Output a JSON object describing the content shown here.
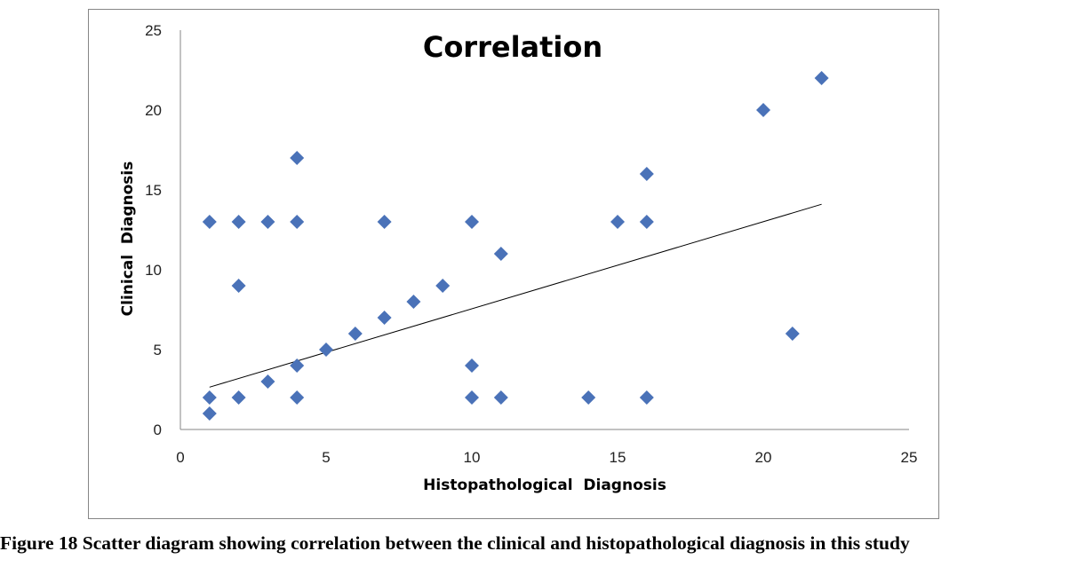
{
  "caption": "Figure 18 Scatter diagram showing correlation between the clinical and histopathological diagnosis in this study",
  "chart_data": {
    "type": "scatter",
    "title": "Correlation",
    "xlabel": "Histopathological  Diagnosis",
    "ylabel": "Clinical  Diagnosis",
    "xlim": [
      0,
      25
    ],
    "ylim": [
      0,
      25
    ],
    "xticks": [
      0,
      5,
      10,
      15,
      20,
      25
    ],
    "yticks": [
      0,
      5,
      10,
      15,
      20,
      25
    ],
    "grid": false,
    "legend": "none",
    "marker": "diamond",
    "marker_color": "#4A72B8",
    "trendline_color": "#000000",
    "series": [
      {
        "points": [
          [
            1,
            13
          ],
          [
            2,
            13
          ],
          [
            3,
            13
          ],
          [
            4,
            17
          ],
          [
            4,
            13
          ],
          [
            7,
            13
          ],
          [
            10,
            13
          ],
          [
            2,
            9
          ],
          [
            11,
            11
          ],
          [
            9,
            9
          ],
          [
            8,
            8
          ],
          [
            7,
            7
          ],
          [
            6,
            6
          ],
          [
            5,
            5
          ],
          [
            4,
            4
          ],
          [
            3,
            3
          ],
          [
            2,
            2
          ],
          [
            1,
            2
          ],
          [
            1,
            1
          ],
          [
            4,
            2
          ],
          [
            10,
            4
          ],
          [
            10,
            2
          ],
          [
            11,
            2
          ],
          [
            14,
            2
          ],
          [
            16,
            2
          ],
          [
            15,
            13
          ],
          [
            16,
            13
          ],
          [
            16,
            16
          ],
          [
            20,
            20
          ],
          [
            22,
            22
          ],
          [
            21,
            6
          ]
        ]
      }
    ],
    "trendline": {
      "type": "linear",
      "x": [
        1,
        22
      ],
      "y": [
        2.65,
        14.1
      ]
    }
  }
}
